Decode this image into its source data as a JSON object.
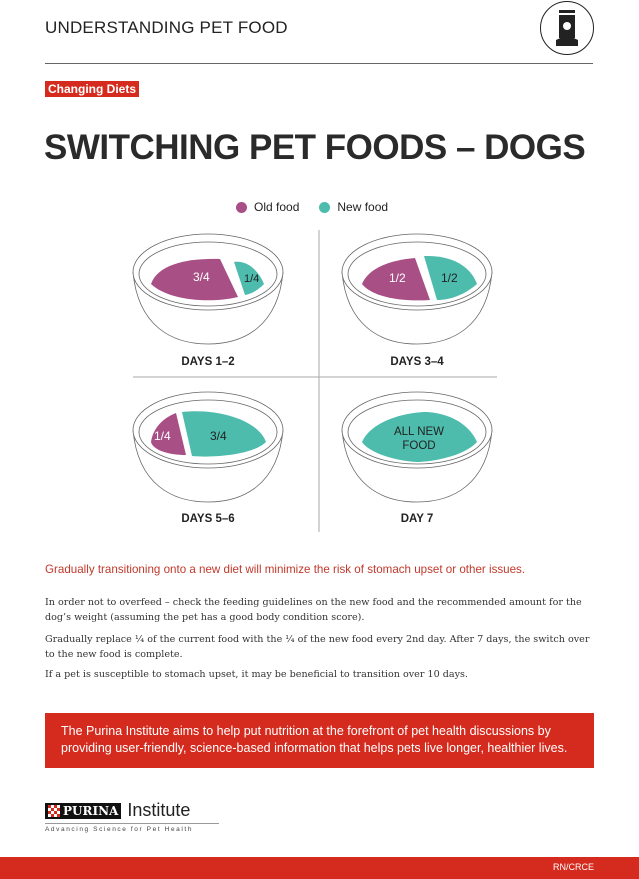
{
  "header": {
    "title": "UNDERSTANDING PET FOOD",
    "icon": "pet-food-bag-icon"
  },
  "badge": "Changing Diets",
  "title": "SWITCHING PET FOODS – DOGS",
  "legend": {
    "old": "Old food",
    "new": "New food"
  },
  "colors": {
    "old": "#a84f86",
    "new": "#4dbcad",
    "accent": "#d52b1e"
  },
  "bowls": [
    {
      "label": "DAYS 1–2",
      "old": "3/4",
      "new": "1/4"
    },
    {
      "label": "DAYS 3–4",
      "old": "1/2",
      "new": "1/2"
    },
    {
      "label": "DAYS 5–6",
      "old": "1/4",
      "new": "3/4"
    },
    {
      "label": "DAY 7",
      "new_line1": "ALL NEW",
      "new_line2": "FOOD"
    }
  ],
  "lead": "Gradually transitioning onto a new diet will minimize the risk of stomach upset or other issues.",
  "paragraphs": [
    "In order not to overfeed – check the feeding guidelines on the new food and the recommended amount for the dog’s weight (assuming the pet has a good body condition score).",
    "Gradually replace ¼ of the current food with the ¼ of the new food every 2nd day. After 7 days, the switch over to the new food is complete.",
    "If a pet is susceptible to stomach upset, it may be beneficial to transition over 10 days."
  ],
  "banner": "The Purina Institute aims to help put nutrition at the forefront of pet health discussions by providing user-friendly, science-based information that helps pets live longer, healthier lives.",
  "logo": {
    "brand": "PURINA",
    "name": "Institute",
    "tagline": "Advancing Science for Pet Health"
  },
  "footer": "RN/CRCE"
}
